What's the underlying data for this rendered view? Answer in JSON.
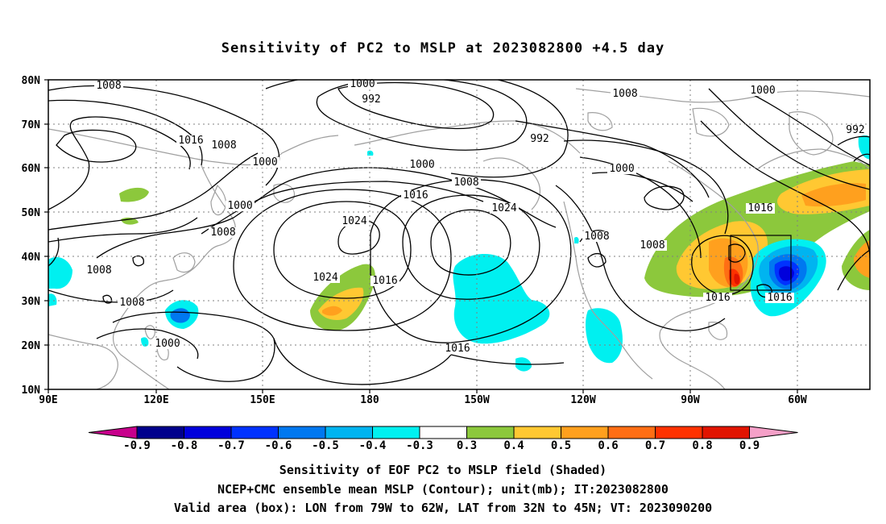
{
  "title": "Sensitivity of PC2 to MSLP at 2023082800 +4.5 day",
  "lat_labels": [
    "80N",
    "70N",
    "60N",
    "50N",
    "40N",
    "30N",
    "20N",
    "10N"
  ],
  "lon_labels": [
    "90E",
    "120E",
    "150E",
    "180",
    "150W",
    "120W",
    "90W",
    "60W"
  ],
  "contour_labels": [
    {
      "text": "1008",
      "kind": "contour"
    },
    {
      "text": "1000",
      "kind": "contour"
    },
    {
      "text": "992",
      "kind": "contour"
    },
    {
      "text": "992",
      "kind": "contour"
    },
    {
      "text": "1008",
      "kind": "contour"
    },
    {
      "text": "1000",
      "kind": "contour"
    },
    {
      "text": "992",
      "kind": "contour"
    },
    {
      "text": "1016",
      "kind": "contour"
    },
    {
      "text": "1008",
      "kind": "contour"
    },
    {
      "text": "1000",
      "kind": "contour"
    },
    {
      "text": "1000",
      "kind": "contour"
    },
    {
      "text": "1008",
      "kind": "contour"
    },
    {
      "text": "1000",
      "kind": "contour"
    },
    {
      "text": "1016",
      "kind": "contour"
    },
    {
      "text": "1000",
      "kind": "contour"
    },
    {
      "text": "1008",
      "kind": "contour"
    },
    {
      "text": "1024",
      "kind": "contour"
    },
    {
      "text": "1024",
      "kind": "contour"
    },
    {
      "text": "1016",
      "kind": "contour"
    },
    {
      "text": "1008",
      "kind": "contour"
    },
    {
      "text": "1008",
      "kind": "contour"
    },
    {
      "text": "1024",
      "kind": "contour"
    },
    {
      "text": "1016",
      "kind": "contour"
    },
    {
      "text": "1008",
      "kind": "contour"
    },
    {
      "text": "1008",
      "kind": "contour"
    },
    {
      "text": "1000",
      "kind": "contour"
    },
    {
      "text": "1016",
      "kind": "contour"
    },
    {
      "text": "1016",
      "kind": "contour"
    },
    {
      "text": "1016",
      "kind": "contour"
    }
  ],
  "colorbar": {
    "labels": [
      "-0.9",
      "-0.8",
      "-0.7",
      "-0.6",
      "-0.5",
      "-0.4",
      "-0.3",
      "0.3",
      "0.4",
      "0.5",
      "0.6",
      "0.7",
      "0.8",
      "0.9"
    ],
    "low_color": "#c8008c",
    "high_color": "#f5a0c8",
    "colors": [
      "#00008c",
      "#0000dc",
      "#0032ff",
      "#0078f0",
      "#00b4f0",
      "#00f0f0",
      "#ffffff",
      "#8cc83c",
      "#ffc832",
      "#ffa01e",
      "#ff6e14",
      "#ff3200",
      "#e11400"
    ]
  },
  "captions": [
    "Sensitivity of EOF PC2 to MSLP field (Shaded)",
    "NCEP+CMC ensemble mean MSLP (Contour); unit(mb); IT:2023082800",
    "Valid area (box): LON from 79W to 62W, LAT from 32N to 45N; VT: 2023090200"
  ]
}
